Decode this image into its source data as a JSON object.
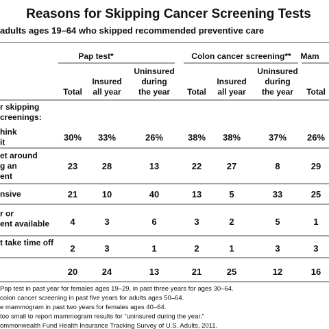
{
  "header": {
    "title": "Reasons for Skipping Cancer Screening Tests",
    "subtitle": "adults ages 19–64 who skipped recommended preventive care"
  },
  "table": {
    "groups": [
      "Pap test*",
      "Colon cancer screening**",
      "Mam"
    ],
    "columns": [
      [
        "Total"
      ],
      [
        "Insured",
        "all year"
      ],
      [
        "Uninsured",
        "during",
        "the year"
      ],
      [
        "Total"
      ],
      [
        "Insured",
        "all year"
      ],
      [
        "Uninsured",
        "during",
        "the year"
      ],
      [
        "Total"
      ]
    ],
    "section_label": [
      "r skipping",
      "creenings:"
    ],
    "rows": [
      {
        "label": [
          "hink",
          "it"
        ],
        "cells": [
          "30%",
          "33%",
          "26%",
          "38%",
          "38%",
          "37%",
          "26%"
        ]
      },
      {
        "label": [
          "et around",
          "g an",
          "ent"
        ],
        "cells": [
          "23",
          "28",
          "13",
          "22",
          "27",
          "8",
          "29"
        ]
      },
      {
        "label": [
          "nsive"
        ],
        "cells": [
          "21",
          "10",
          "40",
          "13",
          "5",
          "33",
          "25"
        ]
      },
      {
        "label": [
          "r or",
          "ent available"
        ],
        "cells": [
          "4",
          "3",
          "6",
          "3",
          "2",
          "5",
          "1"
        ]
      },
      {
        "label": [
          "t take time off"
        ],
        "cells": [
          "2",
          "3",
          "1",
          "2",
          "1",
          "3",
          "3"
        ]
      },
      {
        "cells": [
          "20",
          "24",
          "13",
          "21",
          "25",
          "12",
          "16"
        ]
      }
    ]
  },
  "footnotes": [
    "Pap test in past year for females ages 19–29, in past three years for ages 30–64.",
    "colon cancer screening in past five years for adults ages 50–64.",
    "e mammogram in past two years for females ages 40–64.",
    "too small to report mammogram results for “uninsured during the year.”",
    "ommonwealth Fund Health Insurance Tracking Survey of U.S. Adults, 2011."
  ]
}
